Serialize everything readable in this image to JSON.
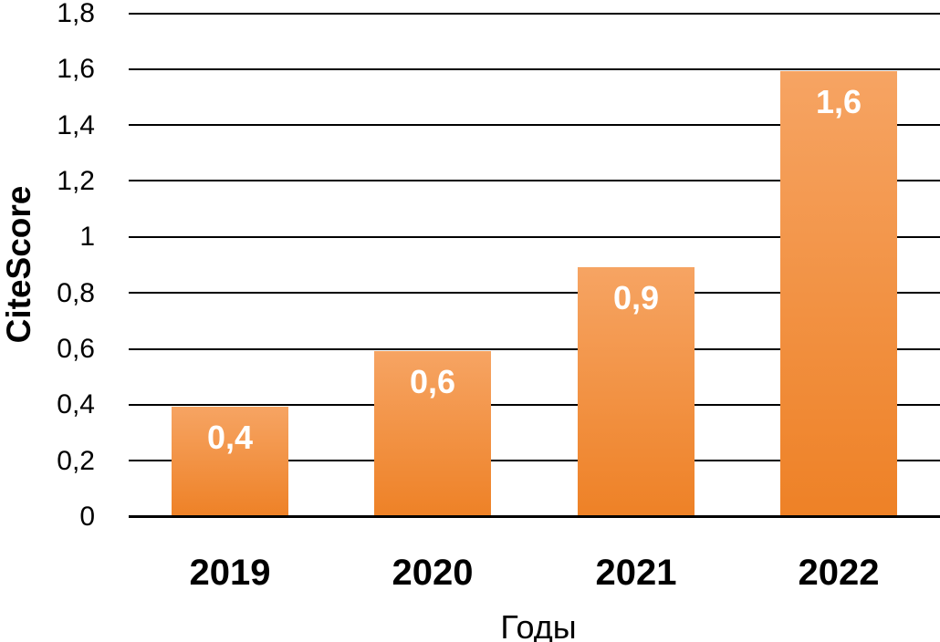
{
  "chart_data": {
    "type": "bar",
    "title": "",
    "ylabel": "CiteScore",
    "xlabel": "Годы",
    "categories": [
      "2019",
      "2020",
      "2021",
      "2022"
    ],
    "values": [
      0.4,
      0.6,
      0.9,
      1.6
    ],
    "value_labels": [
      "0,4",
      "0,6",
      "0,9",
      "1,6"
    ],
    "ylim": [
      0,
      1.8
    ],
    "y_tick_step": 0.2,
    "y_tick_labels": [
      "0",
      "0,2",
      "0,4",
      "0,6",
      "0,8",
      "1",
      "1,2",
      "1,4",
      "1,6",
      "1,8"
    ],
    "grid": "horizontal",
    "legend": "none",
    "colors": {
      "bar_gradient_top": "#F6A463",
      "bar_gradient_bottom": "#EE8126",
      "gridline": "#000000",
      "axis_line": "#000000",
      "tick_text": "#000000",
      "value_label_text": "#FFFFFF"
    }
  }
}
